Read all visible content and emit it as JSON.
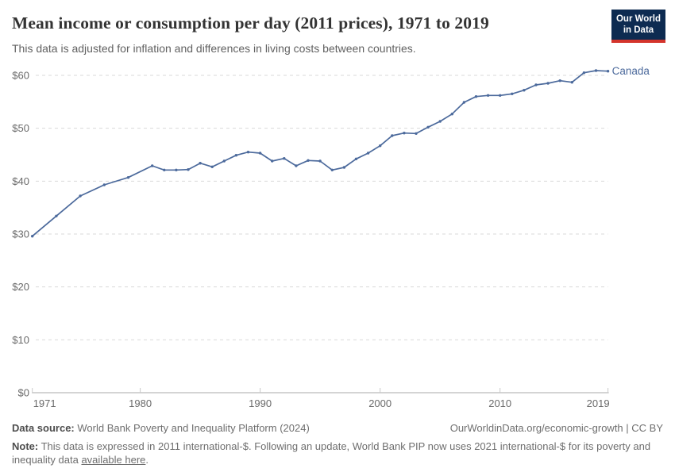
{
  "header": {
    "title": "Mean income or consumption per day (2011 prices), 1971 to 2019",
    "subtitle": "This data is adjusted for inflation and differences in living costs between countries.",
    "logo": {
      "line1": "Our World",
      "line2": "in Data"
    }
  },
  "chart_data": {
    "type": "line",
    "title": "Mean income or consumption per day (2011 prices), 1971 to 2019",
    "xlabel": "",
    "ylabel": "",
    "xlim": [
      1971,
      2019
    ],
    "ylim": [
      0,
      60
    ],
    "x_ticks": [
      1971,
      1980,
      1990,
      2000,
      2010,
      2019
    ],
    "y_ticks": [
      "$0",
      "$10",
      "$20",
      "$30",
      "$40",
      "$50",
      "$60"
    ],
    "y_tick_values": [
      0,
      10,
      20,
      30,
      40,
      50,
      60
    ],
    "grid": "horizontal-dashed",
    "legend_position": "end-of-line-label",
    "series": [
      {
        "name": "Canada",
        "color": "#4C6A9C",
        "x": [
          1971,
          1973,
          1975,
          1977,
          1979,
          1981,
          1982,
          1983,
          1984,
          1985,
          1986,
          1987,
          1988,
          1989,
          1990,
          1991,
          1992,
          1993,
          1994,
          1995,
          1996,
          1997,
          1998,
          1999,
          2000,
          2001,
          2002,
          2003,
          2004,
          2005,
          2006,
          2007,
          2008,
          2009,
          2010,
          2011,
          2012,
          2013,
          2014,
          2015,
          2016,
          2017,
          2018,
          2019
        ],
        "values": [
          29.6,
          33.4,
          37.2,
          39.3,
          40.7,
          42.9,
          42.1,
          42.1,
          42.2,
          43.4,
          42.7,
          43.8,
          44.9,
          45.5,
          45.3,
          43.8,
          44.3,
          42.9,
          43.9,
          43.8,
          42.1,
          42.6,
          44.2,
          45.3,
          46.7,
          48.6,
          49.1,
          49.0,
          50.2,
          51.3,
          52.7,
          54.9,
          56.0,
          56.2,
          56.2,
          56.5,
          57.2,
          58.2,
          58.5,
          59.0,
          58.7,
          60.5,
          60.9,
          60.8
        ]
      }
    ]
  },
  "footer": {
    "data_source_label": "Data source:",
    "data_source": "World Bank Poverty and Inequality Platform (2024)",
    "attribution": "OurWorldinData.org/economic-growth | CC BY",
    "note_label": "Note:",
    "note_before_link": "This data is expressed in 2011 international-$. Following an update, World Bank PIP now uses 2021 international-$ for its poverty and inequality data ",
    "note_link": "available here",
    "note_after_link": "."
  },
  "colors": {
    "series_blue": "#4C6A9C",
    "grid": "#dadada",
    "axis": "#a8a8a8",
    "tick": "#c9c9c9",
    "tick_text": "#6a6a6a",
    "title_text": "#333333",
    "subtitle_text": "#616161",
    "footer_text": "#6e6e6e",
    "logo_bg": "#0d2b51",
    "logo_red": "#d4342c"
  }
}
